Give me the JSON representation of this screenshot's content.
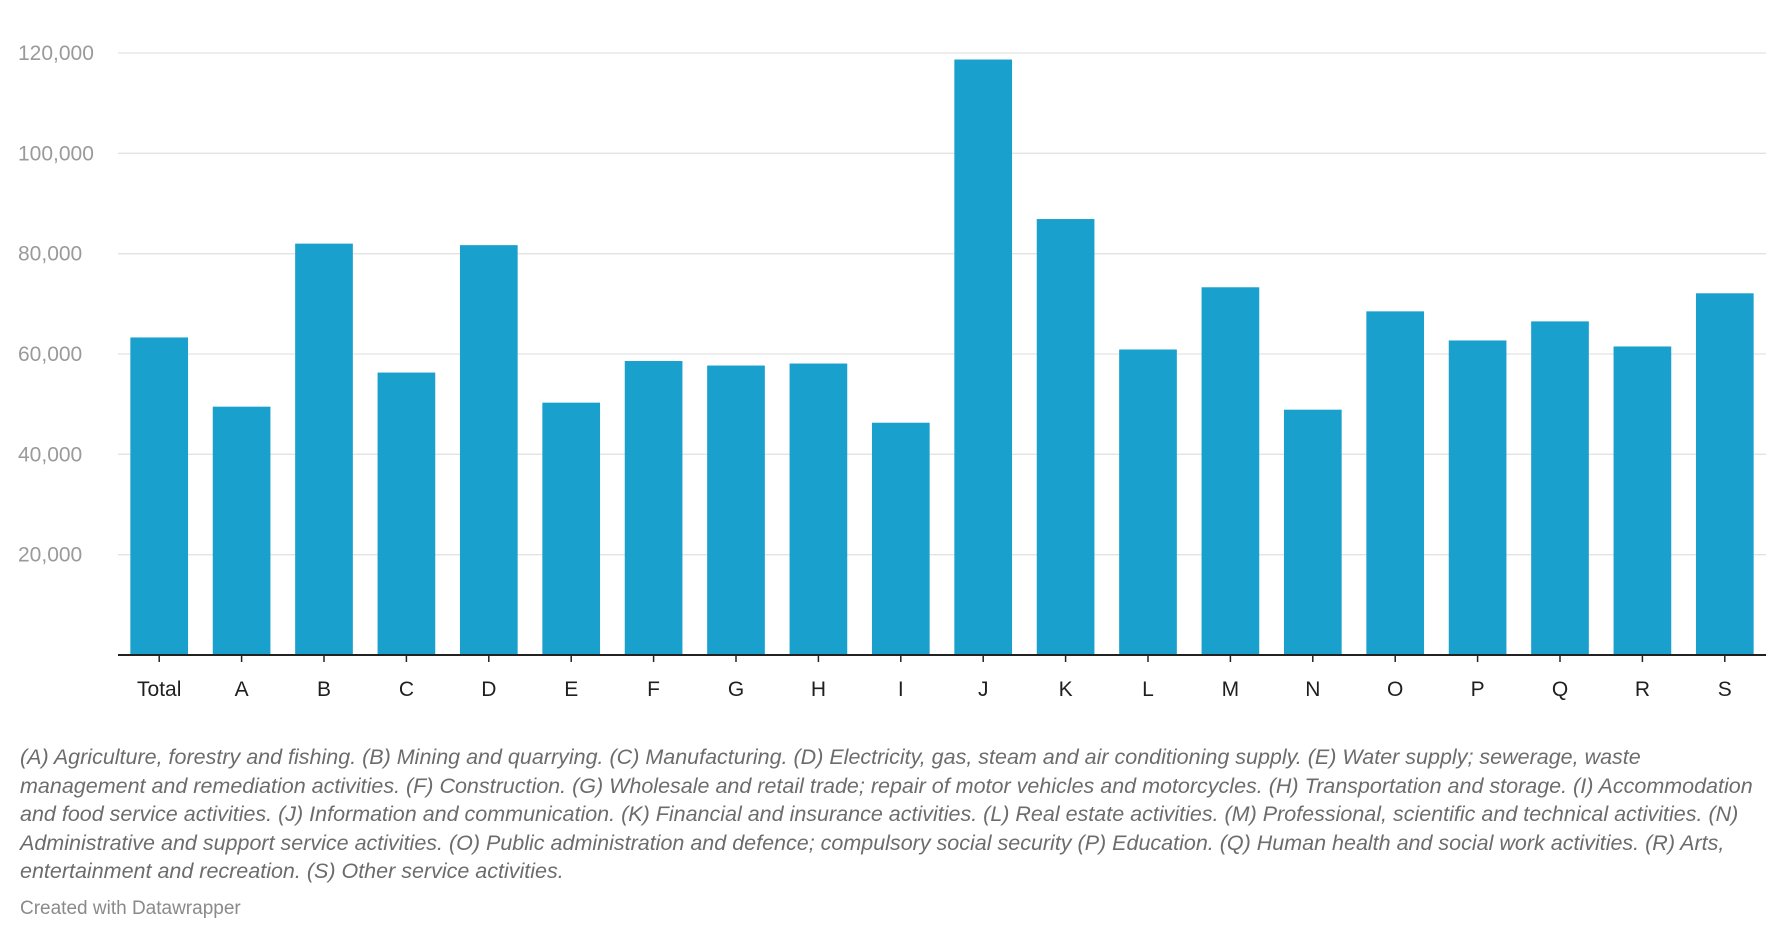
{
  "chart_data": {
    "type": "bar",
    "categories": [
      "Total",
      "A",
      "B",
      "C",
      "D",
      "E",
      "F",
      "G",
      "H",
      "I",
      "J",
      "K",
      "L",
      "M",
      "N",
      "O",
      "P",
      "Q",
      "R",
      "S"
    ],
    "values": [
      63300,
      49500,
      82000,
      56300,
      81700,
      50300,
      58600,
      57700,
      58100,
      46300,
      118700,
      86900,
      60900,
      73300,
      48900,
      68500,
      62700,
      66500,
      61500,
      72100
    ],
    "ylim": [
      0,
      120000
    ],
    "yticks": [
      20000,
      40000,
      60000,
      80000,
      100000,
      120000
    ],
    "ytick_labels": [
      "20,000",
      "40,000",
      "60,000",
      "80,000",
      "100,000",
      "120,000"
    ],
    "grid": true,
    "bar_color": "#1aa0cc",
    "title": "",
    "xlabel": "",
    "ylabel": ""
  },
  "notes": "(A) Agriculture, forestry and fishing. (B) Mining and quarrying. (C) Manufacturing. (D) Electricity, gas, steam and air conditioning supply. (E) Water supply; sewerage, waste management and remediation activities. (F) Construction. (G) Wholesale and retail trade; repair of motor vehicles and motorcycles. (H) Transportation and storage. (I) Accommodation and food service activities. (J) Information and communication. (K) Financial and insurance activities. (L) Real estate activities. (M) Professional, scientific and technical activities. (N) Administrative and support service activities. (O) Public administration and defence; compulsory social security (P) Education. (Q) Human health and social work activities. (R) Arts, entertainment and recreation. (S) Other service activities.",
  "credit": "Created with Datawrapper"
}
